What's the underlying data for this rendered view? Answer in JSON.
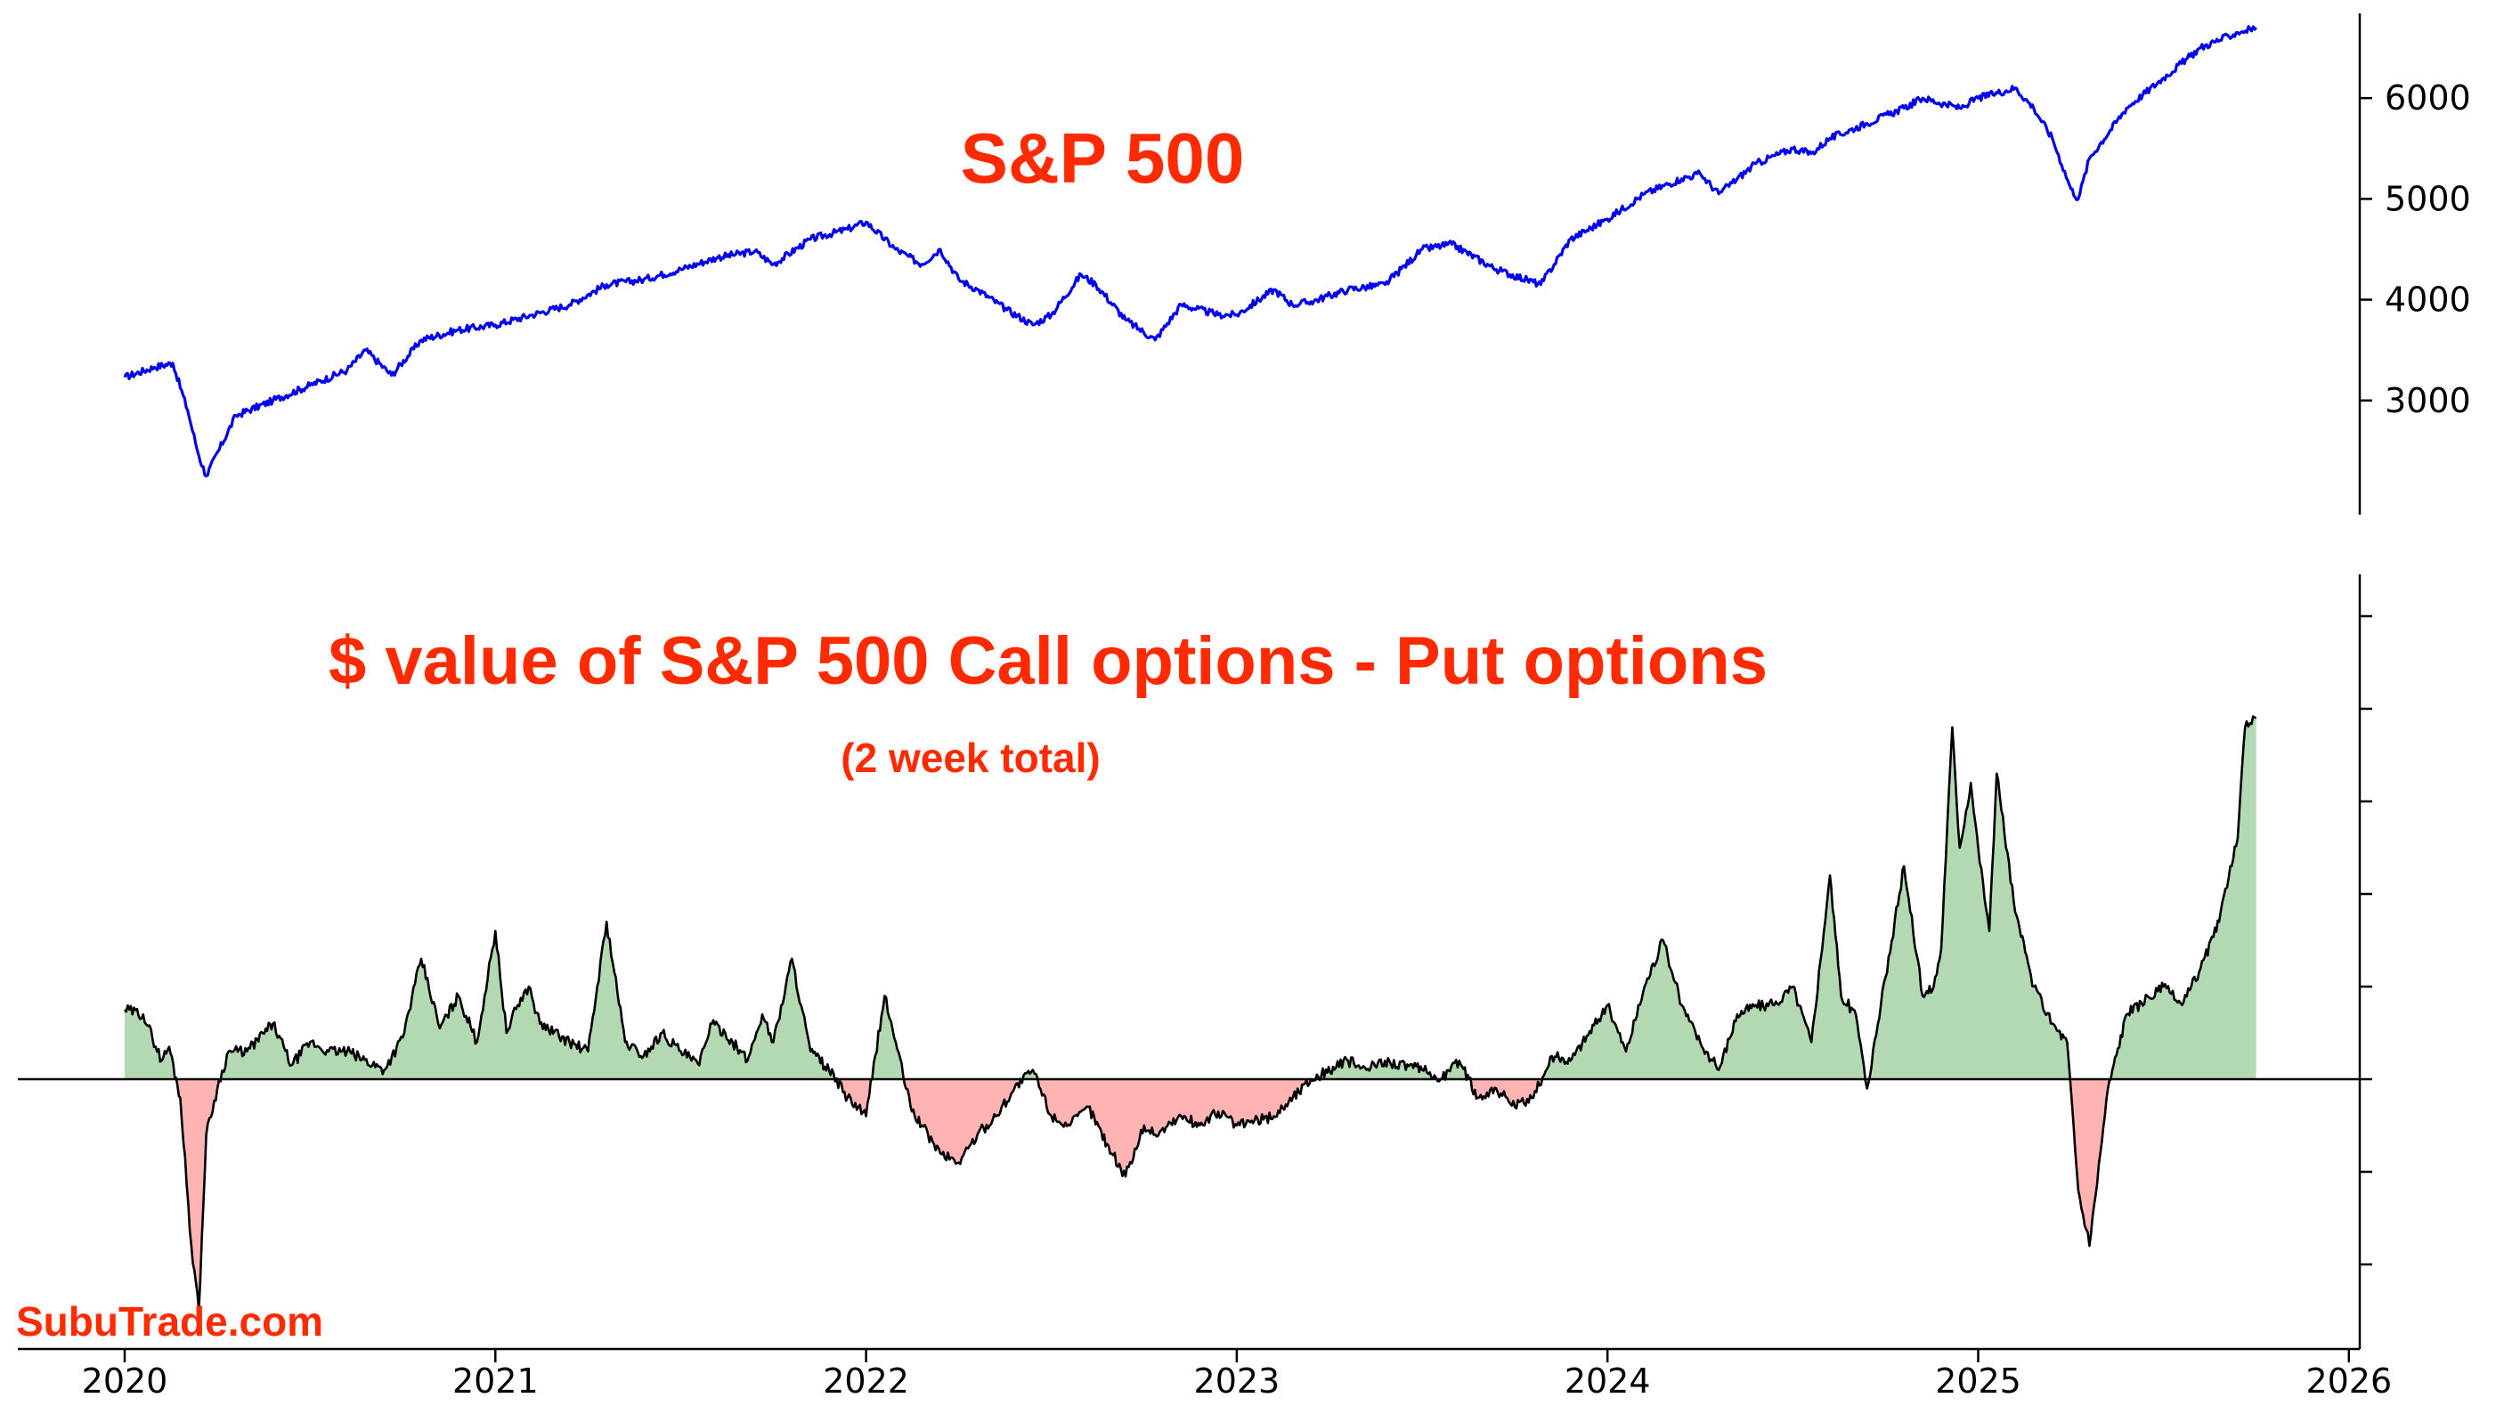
{
  "watermark": "SubuTrade.com",
  "colors": {
    "title": "#ff2a00",
    "price_line": "#0000ee",
    "positive_fill": "#b3d9b3",
    "negative_fill": "#ffb3b3",
    "flow_line": "#000000",
    "axis": "#000000"
  },
  "chart_data": [
    {
      "type": "line",
      "title": "S&P 500",
      "xlabel": "",
      "ylabel": "",
      "y_axis_side": "right",
      "ylim": [
        2100,
        6900
      ],
      "yticks": [
        3000,
        4000,
        5000,
        6000
      ],
      "grid": false,
      "series": [
        {
          "x": [
            2020.0,
            2020.08,
            2020.13,
            2020.17,
            2020.2,
            2020.22,
            2020.3,
            2020.4,
            2020.5,
            2020.6,
            2020.65,
            2020.72,
            2020.8,
            2020.9,
            2021.0,
            2021.1,
            2021.2,
            2021.3,
            2021.4,
            2021.5,
            2021.6,
            2021.7,
            2021.75,
            2021.85,
            2021.95,
            2022.0,
            2022.08,
            2022.15,
            2022.2,
            2022.25,
            2022.3,
            2022.38,
            2022.45,
            2022.5,
            2022.58,
            2022.62,
            2022.7,
            2022.78,
            2022.85,
            2022.95,
            2023.0,
            2023.1,
            2023.15,
            2023.2,
            2023.3,
            2023.4,
            2023.5,
            2023.58,
            2023.7,
            2023.82,
            2023.9,
            2024.0,
            2024.1,
            2024.2,
            2024.25,
            2024.3,
            2024.4,
            2024.5,
            2024.55,
            2024.6,
            2024.7,
            2024.8,
            2024.85,
            2024.95,
            2025.0,
            2025.1,
            2025.15,
            2025.2,
            2025.25,
            2025.27,
            2025.3,
            2025.4,
            2025.5,
            2025.6,
            2025.7,
            2025.75
          ],
          "y": [
            3230,
            3330,
            3370,
            2900,
            2450,
            2250,
            2850,
            3000,
            3150,
            3300,
            3500,
            3250,
            3600,
            3700,
            3750,
            3850,
            3950,
            4150,
            4200,
            4300,
            4420,
            4480,
            4350,
            4600,
            4700,
            4770,
            4500,
            4350,
            4500,
            4200,
            4100,
            3900,
            3750,
            3850,
            4250,
            4150,
            3800,
            3600,
            3950,
            3850,
            3850,
            4100,
            3950,
            3980,
            4100,
            4150,
            4500,
            4550,
            4300,
            4150,
            4600,
            4800,
            5050,
            5200,
            5250,
            5050,
            5350,
            5500,
            5450,
            5600,
            5750,
            5900,
            6000,
            5900,
            6000,
            6100,
            5900,
            5600,
            5100,
            5000,
            5400,
            5900,
            6200,
            6500,
            6650,
            6700
          ]
        }
      ]
    },
    {
      "type": "area",
      "title": "$ value of S&P 500 Call options - Put options",
      "subtitle": "(2 week total)",
      "xlabel": "",
      "ylabel": "",
      "y_axis_side": "right",
      "ylim": [
        -3.0,
        5.0
      ],
      "yticks": [
        -2,
        -1,
        0,
        1,
        2,
        3,
        4,
        5
      ],
      "ytick_labels_shown": false,
      "baseline": 0,
      "grid": false,
      "series": [
        {
          "x": [
            2020.0,
            2020.05,
            2020.1,
            2020.12,
            2020.15,
            2020.18,
            2020.2,
            2020.22,
            2020.25,
            2020.28,
            2020.33,
            2020.4,
            2020.45,
            2020.5,
            2020.55,
            2020.6,
            2020.7,
            2020.75,
            2020.8,
            2020.85,
            2020.9,
            2020.95,
            2021.0,
            2021.03,
            2021.06,
            2021.09,
            2021.12,
            2021.2,
            2021.25,
            2021.3,
            2021.35,
            2021.4,
            2021.45,
            2021.5,
            2021.55,
            2021.58,
            2021.62,
            2021.68,
            2021.72,
            2021.75,
            2021.8,
            2021.85,
            2021.9,
            2021.95,
            2022.0,
            2022.05,
            2022.08,
            2022.12,
            2022.15,
            2022.2,
            2022.25,
            2022.3,
            2022.35,
            2022.4,
            2022.45,
            2022.5,
            2022.55,
            2022.6,
            2022.65,
            2022.7,
            2022.75,
            2022.78,
            2022.85,
            2022.9,
            2022.95,
            2023.0,
            2023.1,
            2023.2,
            2023.3,
            2023.35,
            2023.4,
            2023.5,
            2023.55,
            2023.6,
            2023.65,
            2023.7,
            2023.75,
            2023.8,
            2023.85,
            2023.9,
            2024.0,
            2024.05,
            2024.1,
            2024.15,
            2024.2,
            2024.25,
            2024.3,
            2024.35,
            2024.4,
            2024.45,
            2024.5,
            2024.55,
            2024.6,
            2024.63,
            2024.67,
            2024.7,
            2024.75,
            2024.8,
            2024.85,
            2024.88,
            2024.9,
            2024.93,
            2024.95,
            2024.98,
            2025.0,
            2025.03,
            2025.05,
            2025.1,
            2025.15,
            2025.2,
            2025.24,
            2025.27,
            2025.3,
            2025.35,
            2025.4,
            2025.5,
            2025.55,
            2025.6,
            2025.65,
            2025.68,
            2025.7,
            2025.72,
            2025.75
          ],
          "y": [
            0.75,
            0.7,
            0.2,
            0.35,
            -0.2,
            -1.8,
            -2.5,
            -0.6,
            -0.1,
            0.3,
            0.3,
            0.6,
            0.15,
            0.4,
            0.3,
            0.3,
            0.1,
            0.45,
            1.3,
            0.55,
            0.9,
            0.4,
            1.6,
            0.5,
            0.8,
            1.0,
            0.6,
            0.4,
            0.3,
            1.7,
            0.4,
            0.25,
            0.5,
            0.3,
            0.15,
            0.6,
            0.5,
            0.2,
            0.7,
            0.4,
            1.3,
            0.3,
            0.1,
            -0.2,
            -0.4,
            0.9,
            0.4,
            -0.3,
            -0.5,
            -0.8,
            -0.9,
            -0.6,
            -0.4,
            -0.1,
            0.1,
            -0.4,
            -0.5,
            -0.3,
            -0.7,
            -1.05,
            -0.5,
            -0.6,
            -0.4,
            -0.5,
            -0.35,
            -0.5,
            -0.4,
            0.0,
            0.2,
            0.1,
            0.2,
            0.1,
            0.0,
            0.2,
            -0.2,
            -0.1,
            -0.3,
            -0.2,
            0.25,
            0.2,
            0.8,
            0.3,
            1.0,
            1.5,
            0.8,
            0.4,
            0.1,
            0.7,
            0.8,
            0.8,
            1.0,
            0.4,
            2.2,
            0.9,
            0.7,
            -0.1,
            1.1,
            2.3,
            0.9,
            1.0,
            1.4,
            3.8,
            2.5,
            3.2,
            2.5,
            1.6,
            3.3,
            1.8,
            1.0,
            0.6,
            0.4,
            -1.2,
            -1.8,
            -0.1,
            0.7,
            1.0,
            0.8,
            1.2,
            1.7,
            2.3,
            2.6,
            3.8,
            3.9
          ]
        }
      ]
    }
  ],
  "x_axis": {
    "ticks": [
      2020,
      2021,
      2022,
      2023,
      2024,
      2025,
      2026
    ],
    "labels": [
      "2020",
      "2021",
      "2022",
      "2023",
      "2024",
      "2025",
      "2026"
    ]
  }
}
